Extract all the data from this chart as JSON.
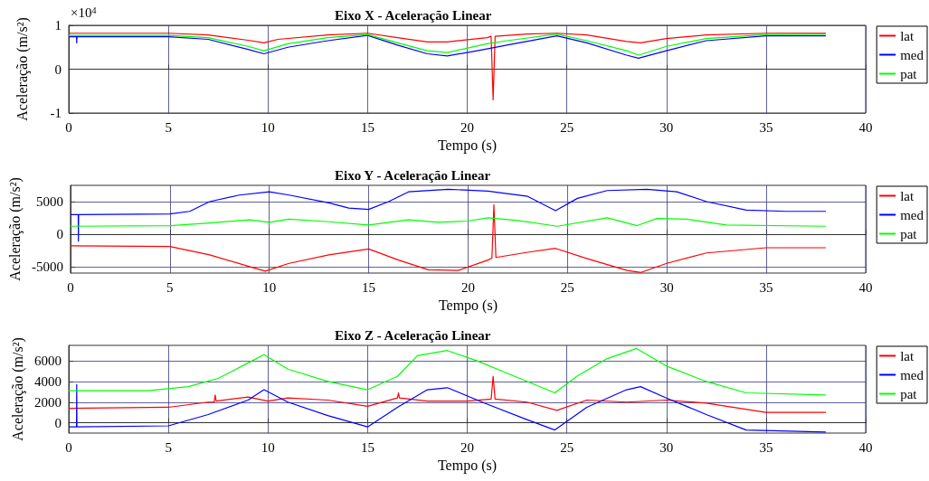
{
  "chart_data": [
    {
      "type": "line",
      "title": "Eixo X - Aceleração Linear",
      "xlabel": "Tempo (s)",
      "ylabel": "Aceleração (m/s²)",
      "annotations": [
        "×10$^{4}$"
      ],
      "xlim": [
        0,
        40
      ],
      "xticks": [
        0,
        5,
        10,
        15,
        20,
        25,
        30,
        35,
        40
      ],
      "ylim": [
        -1,
        1
      ],
      "yticks": [
        -1,
        0,
        1
      ],
      "grid": true,
      "legend": "top right",
      "series": [
        {
          "name": "lat",
          "color": "#ff0000",
          "x": [
            0,
            5,
            7,
            9,
            9.8,
            10.5,
            13,
            15,
            16.5,
            18,
            19,
            21,
            21.2,
            21.3,
            21.4,
            23,
            24.5,
            26,
            28,
            28.7,
            30,
            32,
            35,
            38
          ],
          "values": [
            0.82,
            0.82,
            0.78,
            0.66,
            0.6,
            0.68,
            0.78,
            0.82,
            0.72,
            0.62,
            0.62,
            0.72,
            0.75,
            -0.7,
            0.75,
            0.8,
            0.82,
            0.78,
            0.63,
            0.6,
            0.7,
            0.78,
            0.82,
            0.82
          ]
        },
        {
          "name": "med",
          "color": "#0000ff",
          "x": [
            0,
            0.39,
            0.4,
            0.41,
            5,
            7,
            9,
            9.8,
            11,
            13,
            15,
            16.5,
            18,
            19,
            20.5,
            22,
            24.5,
            26,
            28,
            28.6,
            30,
            32,
            35,
            38
          ],
          "values": [
            0.74,
            0.74,
            0.6,
            0.74,
            0.74,
            0.68,
            0.45,
            0.35,
            0.5,
            0.65,
            0.77,
            0.55,
            0.35,
            0.3,
            0.42,
            0.55,
            0.76,
            0.6,
            0.32,
            0.25,
            0.42,
            0.65,
            0.76,
            0.76
          ]
        },
        {
          "name": "pat",
          "color": "#00ff00",
          "x": [
            0,
            5,
            7,
            9,
            9.8,
            11,
            13,
            15,
            16.5,
            18,
            19,
            21,
            22,
            24.5,
            26,
            28,
            28.6,
            30,
            32,
            35,
            38
          ],
          "values": [
            0.77,
            0.77,
            0.72,
            0.52,
            0.42,
            0.58,
            0.72,
            0.79,
            0.6,
            0.42,
            0.38,
            0.58,
            0.65,
            0.8,
            0.65,
            0.42,
            0.32,
            0.52,
            0.7,
            0.79,
            0.8
          ]
        }
      ]
    },
    {
      "type": "line",
      "title": "Eixo Y - Aceleração Linear",
      "xlabel": "Tempo (s)",
      "ylabel": "Aceleração (m/s²)",
      "xlim": [
        0,
        40
      ],
      "xticks": [
        0,
        5,
        10,
        15,
        20,
        25,
        30,
        35,
        40
      ],
      "ylim": [
        -6000,
        7500
      ],
      "yticks": [
        -5000,
        0,
        5000
      ],
      "grid": true,
      "legend": "top right",
      "series": [
        {
          "name": "lat",
          "color": "#ff0000",
          "x": [
            0,
            5,
            7,
            9,
            9.8,
            11,
            13,
            15,
            16.5,
            18,
            19.5,
            21,
            21.2,
            21.3,
            21.4,
            23,
            24.4,
            26,
            28,
            28.7,
            30,
            32,
            35,
            38
          ],
          "values": [
            -1800,
            -1900,
            -3200,
            -5000,
            -5700,
            -4500,
            -3200,
            -2300,
            -4000,
            -5500,
            -5600,
            -4000,
            -3700,
            4500,
            -3600,
            -2800,
            -2200,
            -3800,
            -5600,
            -5900,
            -4500,
            -2900,
            -2100,
            -2100
          ]
        },
        {
          "name": "med",
          "color": "#0000ff",
          "x": [
            0,
            0.39,
            0.4,
            0.41,
            5,
            6,
            7,
            8.5,
            10,
            11,
            13,
            14,
            15,
            16,
            17,
            19,
            21,
            23,
            24.4,
            25.5,
            27,
            29,
            30.5,
            32,
            34,
            36,
            38
          ],
          "values": [
            3000,
            3000,
            -1100,
            3000,
            3100,
            3500,
            5000,
            6000,
            6500,
            6000,
            4800,
            4000,
            3800,
            5000,
            6500,
            6900,
            6600,
            5800,
            3600,
            5500,
            6700,
            6900,
            6500,
            5000,
            3700,
            3500,
            3500
          ]
        },
        {
          "name": "pat",
          "color": "#00ff00",
          "x": [
            0,
            5,
            7,
            9,
            10,
            11,
            13,
            15,
            17,
            18.5,
            20,
            21,
            22.5,
            24.5,
            27,
            28.5,
            29.5,
            31,
            33,
            38
          ],
          "values": [
            1200,
            1300,
            1700,
            2200,
            1800,
            2300,
            1900,
            1400,
            2200,
            1800,
            2000,
            2500,
            2100,
            1200,
            2500,
            1300,
            2400,
            2300,
            1400,
            1200
          ]
        }
      ]
    },
    {
      "type": "line",
      "title": "Eixo Z - Aceleração Linear",
      "xlabel": "Tempo (s)",
      "ylabel": "Aceleração (m/s²)",
      "xlim": [
        0,
        40
      ],
      "xticks": [
        0,
        5,
        10,
        15,
        20,
        25,
        30,
        35,
        40
      ],
      "ylim": [
        -1000,
        7500
      ],
      "yticks": [
        0,
        2000,
        4000,
        6000
      ],
      "grid": true,
      "legend": "top right",
      "series": [
        {
          "name": "lat",
          "color": "#ff0000",
          "x": [
            0,
            5,
            7,
            7.3,
            7.35,
            7.4,
            9,
            10,
            11,
            13,
            15,
            16.5,
            16.55,
            16.6,
            18,
            20,
            21.2,
            21.3,
            21.4,
            23,
            24.5,
            26,
            28,
            30,
            32,
            35,
            38
          ],
          "values": [
            1400,
            1500,
            2000,
            2000,
            2700,
            2100,
            2500,
            2100,
            2400,
            2200,
            1600,
            2400,
            2900,
            2400,
            2100,
            2100,
            2300,
            4500,
            2300,
            2000,
            1200,
            2200,
            2000,
            2200,
            1900,
            1000,
            1000
          ]
        },
        {
          "name": "med",
          "color": "#0000ff",
          "x": [
            0,
            0.39,
            0.4,
            0.41,
            5,
            7,
            9,
            9.8,
            11,
            13,
            15,
            16.5,
            18,
            19,
            21,
            23,
            24.4,
            26,
            28,
            28.7,
            30,
            32,
            34,
            38
          ],
          "values": [
            -400,
            -400,
            3700,
            -400,
            -300,
            800,
            2200,
            3200,
            2000,
            700,
            -400,
            1500,
            3200,
            3400,
            1800,
            300,
            -700,
            1500,
            3200,
            3500,
            2400,
            800,
            -700,
            -900
          ]
        },
        {
          "name": "pat",
          "color": "#00ff00",
          "x": [
            0,
            4,
            6,
            7.5,
            9,
            9.8,
            11,
            13,
            15,
            16.5,
            17.5,
            19,
            20.5,
            22,
            24.4,
            25.5,
            27,
            28.5,
            30,
            32,
            34,
            38
          ],
          "values": [
            3100,
            3100,
            3500,
            4300,
            5800,
            6600,
            5200,
            4000,
            3200,
            4500,
            6500,
            7000,
            6000,
            4800,
            2900,
            4500,
            6200,
            7200,
            5500,
            4000,
            2900,
            2700
          ]
        }
      ]
    }
  ]
}
